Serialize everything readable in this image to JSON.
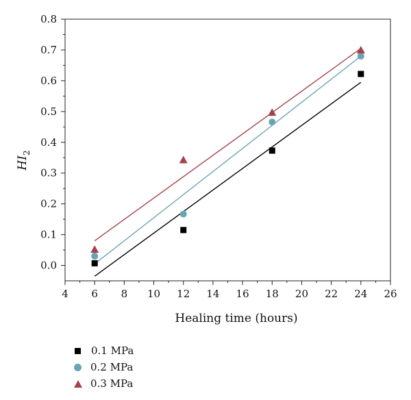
{
  "chart_data": {
    "type": "scatter",
    "xlabel": "Healing time (hours)",
    "ylabel_main": "HI",
    "ylabel_sub": "2",
    "xlim": [
      4,
      26
    ],
    "ylim": [
      -0.05,
      0.8
    ],
    "xticks": [
      "4",
      "6",
      "8",
      "10",
      "12",
      "14",
      "16",
      "18",
      "20",
      "22",
      "24",
      "26"
    ],
    "yticks": [
      "0.0",
      "0.1",
      "0.2",
      "0.3",
      "0.4",
      "0.5",
      "0.6",
      "0.7",
      "0.8"
    ],
    "grid": false,
    "legend_position": "bottom-left",
    "series": [
      {
        "name": "0.1 MPa",
        "marker": "square",
        "color": "#000000",
        "x": [
          6,
          12,
          18,
          24
        ],
        "y": [
          0.007,
          0.115,
          0.373,
          0.622
        ],
        "fit": {
          "x": [
            6,
            24
          ],
          "y": [
            -0.035,
            0.595
          ]
        }
      },
      {
        "name": "0.2 MPa",
        "marker": "circle",
        "color": "#6aa4b1",
        "x": [
          6,
          12,
          18,
          24
        ],
        "y": [
          0.03,
          0.167,
          0.466,
          0.68
        ],
        "fit": {
          "x": [
            6,
            24
          ],
          "y": [
            0.005,
            0.68
          ]
        }
      },
      {
        "name": "0.3 MPa",
        "marker": "triangle",
        "color": "#a3414c",
        "x": [
          6,
          12,
          18,
          24
        ],
        "y": [
          0.052,
          0.343,
          0.497,
          0.7
        ],
        "fit": {
          "x": [
            6,
            24
          ],
          "y": [
            0.08,
            0.705
          ]
        }
      }
    ]
  }
}
